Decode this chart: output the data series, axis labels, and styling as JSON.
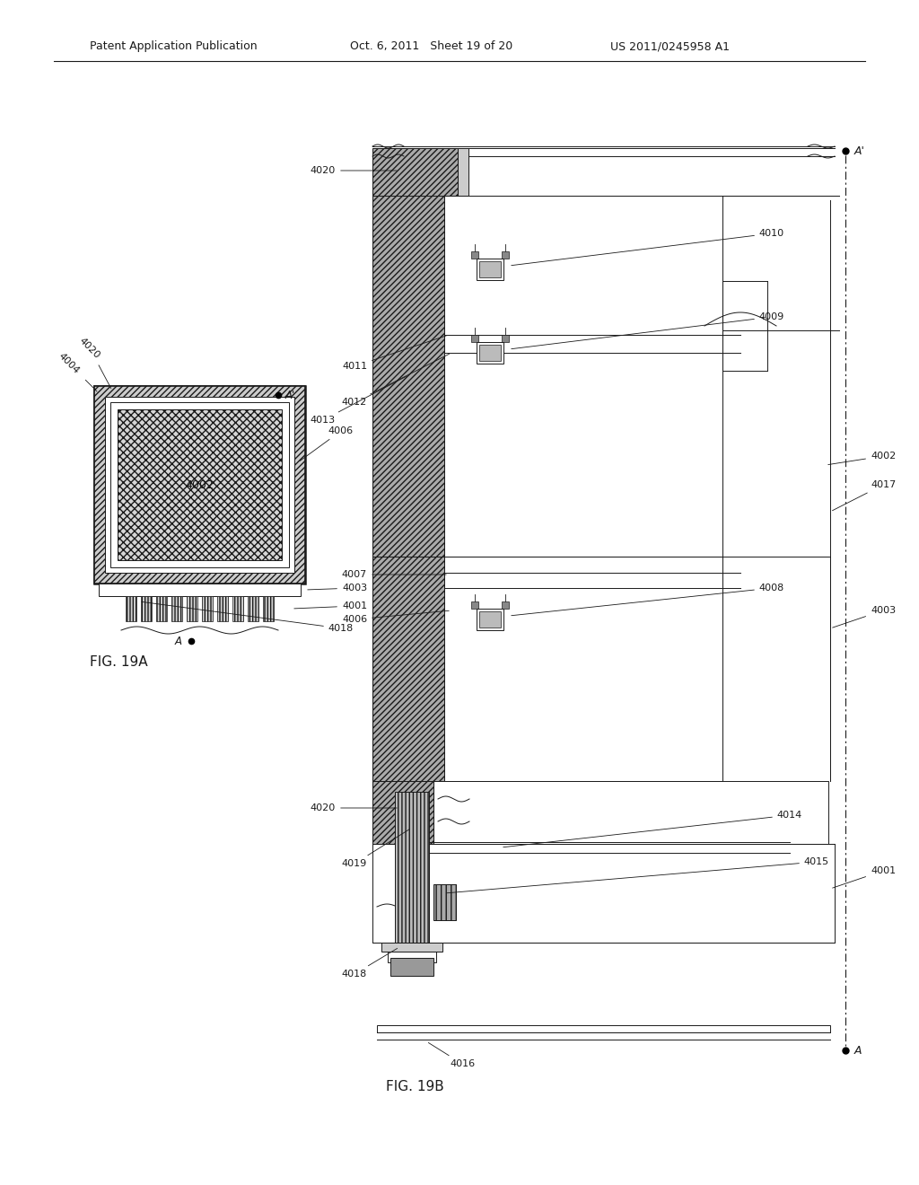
{
  "bg_color": "#ffffff",
  "line_color": "#1a1a1a",
  "header_text_left": "Patent Application Publication",
  "header_text_mid": "Oct. 6, 2011   Sheet 19 of 20",
  "header_text_right": "US 2011/0245958 A1",
  "fig19a_label": "FIG. 19A",
  "fig19b_label": "FIG. 19B",
  "gray_hatch": "#888888",
  "light_gray": "#cccccc",
  "mid_gray": "#999999",
  "dark_gray": "#777777"
}
